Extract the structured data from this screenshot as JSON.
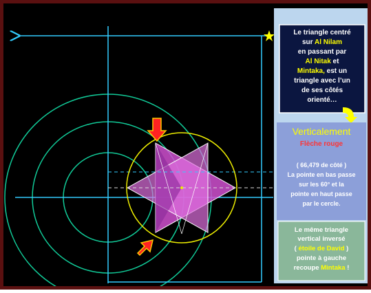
{
  "box1": {
    "l1": "Le triangle centré",
    "l2a": "sur ",
    "l2b": "Al Nilam",
    "l3": "en passant par",
    "l4a": "Al Nitak",
    "l4b": " et",
    "l5a": "Mintaka,",
    "l5b": " est un",
    "l6": "triangle avec l’un",
    "l7": "de ses côtés",
    "l8": "orienté…"
  },
  "box2": {
    "title": "Verticalement",
    "subtitle": "Flèche rouge",
    "l1": "( 66,479 de côté )",
    "l2": "La pointe en bas passe",
    "l3": "sur les 60° et la",
    "l4": "pointe en haut passe",
    "l5": "par le cercle."
  },
  "box3": {
    "l1": "Le même triangle",
    "l2": "vertical inversé",
    "l3a": "( ",
    "l3b": "étoile de David",
    "l3c": " )",
    "l4": "pointe à gauche",
    "l5a": "recoupe ",
    "l5b": "Mintaka",
    "l5c": " !"
  }
}
